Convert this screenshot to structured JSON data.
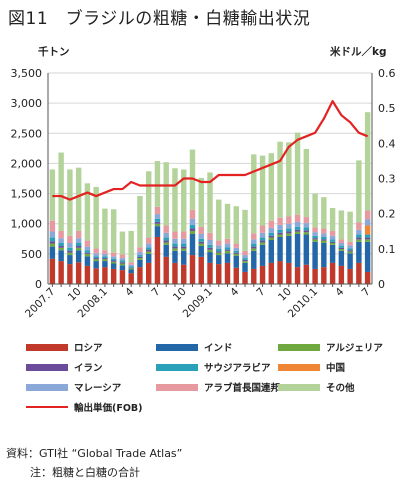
{
  "page": {
    "title": "図11　ブラジルの粗糖・白糖輸出状況",
    "unit_left": "千トン",
    "unit_right": "米ドル／kg",
    "source": "資料：GTI社 “Global Trade Atlas”",
    "note": "注：粗糖と白糖の合計"
  },
  "colors": {
    "russia": "#c0392b",
    "india": "#2467a8",
    "algeria": "#6fa83f",
    "iran": "#6b4c9a",
    "saudi": "#2aa1b8",
    "china": "#ef8636",
    "malaysia": "#8aa8d8",
    "uae": "#e69a9f",
    "other": "#b3d39a",
    "price": "#e32222"
  },
  "chart_data": {
    "type": "bar",
    "stacked": true,
    "title": "",
    "xlabel": "",
    "ylabel": "千トン",
    "y2label": "米ドル／kg",
    "ylim": [
      0,
      3500
    ],
    "y2lim": [
      0,
      0.6
    ],
    "yticks": [
      "0",
      "500",
      "1,000",
      "1,500",
      "2,000",
      "2,500",
      "3,000",
      "3,500"
    ],
    "y2ticks": [
      "0",
      "0.1",
      "0.2",
      "0.3",
      "0.4",
      "0.5",
      "0.6"
    ],
    "grid": true,
    "legend_position": "bottom",
    "categories": [
      "2007.7",
      "8",
      "9",
      "10",
      "11",
      "12",
      "2008.1",
      "2",
      "3",
      "4",
      "5",
      "6",
      "7",
      "8",
      "9",
      "10",
      "11",
      "12",
      "2009.1",
      "2",
      "3",
      "4",
      "5",
      "6",
      "7",
      "8",
      "9",
      "10",
      "11",
      "12",
      "2010.1",
      "2",
      "3",
      "4",
      "5",
      "6",
      "7"
    ],
    "x_tick_labels": [
      "2007.7",
      "10",
      "2008.1",
      "4",
      "7",
      "10",
      "2009.1",
      "4",
      "7",
      "10",
      "2010.1",
      "4",
      "7"
    ],
    "series": [
      {
        "name": "ロシア",
        "key": "russia",
        "values": [
          420,
          380,
          330,
          360,
          300,
          260,
          280,
          250,
          230,
          180,
          280,
          350,
          780,
          450,
          350,
          320,
          480,
          450,
          350,
          330,
          350,
          270,
          200,
          250,
          300,
          350,
          380,
          350,
          280,
          320,
          250,
          280,
          350,
          300,
          250,
          350,
          200
        ]
      },
      {
        "name": "インド",
        "key": "india",
        "values": [
          200,
          180,
          150,
          200,
          160,
          120,
          100,
          90,
          80,
          60,
          120,
          150,
          180,
          200,
          200,
          230,
          350,
          180,
          180,
          150,
          160,
          200,
          150,
          300,
          350,
          380,
          400,
          450,
          550,
          500,
          450,
          400,
          300,
          250,
          260,
          350,
          500
        ]
      },
      {
        "name": "アルジェリア",
        "key": "algeria",
        "values": [
          50,
          40,
          40,
          40,
          40,
          30,
          30,
          30,
          30,
          20,
          30,
          40,
          40,
          40,
          40,
          40,
          50,
          40,
          40,
          40,
          40,
          30,
          30,
          40,
          40,
          40,
          40,
          40,
          40,
          40,
          40,
          40,
          30,
          30,
          30,
          40,
          40
        ]
      },
      {
        "name": "イラン",
        "key": "iran",
        "values": [
          40,
          30,
          30,
          30,
          20,
          20,
          20,
          20,
          20,
          10,
          20,
          30,
          30,
          30,
          30,
          30,
          40,
          30,
          30,
          20,
          20,
          20,
          20,
          30,
          30,
          30,
          30,
          30,
          30,
          30,
          20,
          20,
          20,
          20,
          20,
          30,
          30
        ]
      },
      {
        "name": "サウジアラビア",
        "key": "saudi",
        "values": [
          60,
          50,
          50,
          50,
          40,
          30,
          30,
          30,
          30,
          20,
          30,
          40,
          50,
          50,
          50,
          50,
          60,
          50,
          50,
          40,
          40,
          30,
          30,
          50,
          50,
          50,
          50,
          50,
          50,
          50,
          40,
          40,
          40,
          30,
          30,
          50,
          50
        ]
      },
      {
        "name": "中国",
        "key": "china",
        "values": [
          0,
          0,
          0,
          0,
          0,
          0,
          0,
          0,
          0,
          0,
          0,
          0,
          0,
          0,
          0,
          0,
          0,
          0,
          0,
          0,
          0,
          0,
          0,
          0,
          0,
          0,
          0,
          0,
          0,
          0,
          0,
          0,
          0,
          0,
          0,
          0,
          150
        ]
      },
      {
        "name": "マレーシア",
        "key": "malaysia",
        "values": [
          100,
          80,
          80,
          80,
          60,
          50,
          40,
          40,
          40,
          30,
          50,
          60,
          80,
          80,
          80,
          80,
          100,
          80,
          80,
          60,
          60,
          50,
          50,
          70,
          80,
          80,
          80,
          80,
          80,
          70,
          60,
          60,
          60,
          50,
          50,
          80,
          100
        ]
      },
      {
        "name": "アラブ首長国連邦",
        "key": "uae",
        "values": [
          180,
          120,
          120,
          120,
          100,
          80,
          60,
          60,
          60,
          40,
          80,
          100,
          120,
          120,
          120,
          120,
          150,
          120,
          120,
          80,
          80,
          70,
          70,
          100,
          120,
          120,
          120,
          120,
          120,
          100,
          80,
          80,
          80,
          60,
          60,
          120,
          150
        ]
      },
      {
        "name": "その他",
        "key": "other",
        "values": [
          850,
          1300,
          1100,
          1050,
          950,
          1020,
          690,
          720,
          380,
          520,
          850,
          1100,
          760,
          1050,
          1050,
          1030,
          1000,
          810,
          1000,
          680,
          580,
          620,
          680,
          1310,
          1160,
          1120,
          1260,
          1230,
          1360,
          1130,
          560,
          520,
          380,
          480,
          500,
          1030,
          1630
        ]
      }
    ],
    "price_line": {
      "name": "輸出単価(FOB)",
      "key": "price",
      "axis": "right",
      "values": [
        0.25,
        0.25,
        0.24,
        0.25,
        0.26,
        0.25,
        0.26,
        0.27,
        0.27,
        0.29,
        0.28,
        0.28,
        0.28,
        0.28,
        0.28,
        0.3,
        0.3,
        0.29,
        0.29,
        0.31,
        0.31,
        0.31,
        0.31,
        0.32,
        0.33,
        0.34,
        0.35,
        0.39,
        0.41,
        0.42,
        0.43,
        0.47,
        0.52,
        0.48,
        0.46,
        0.43,
        0.42
      ]
    }
  }
}
